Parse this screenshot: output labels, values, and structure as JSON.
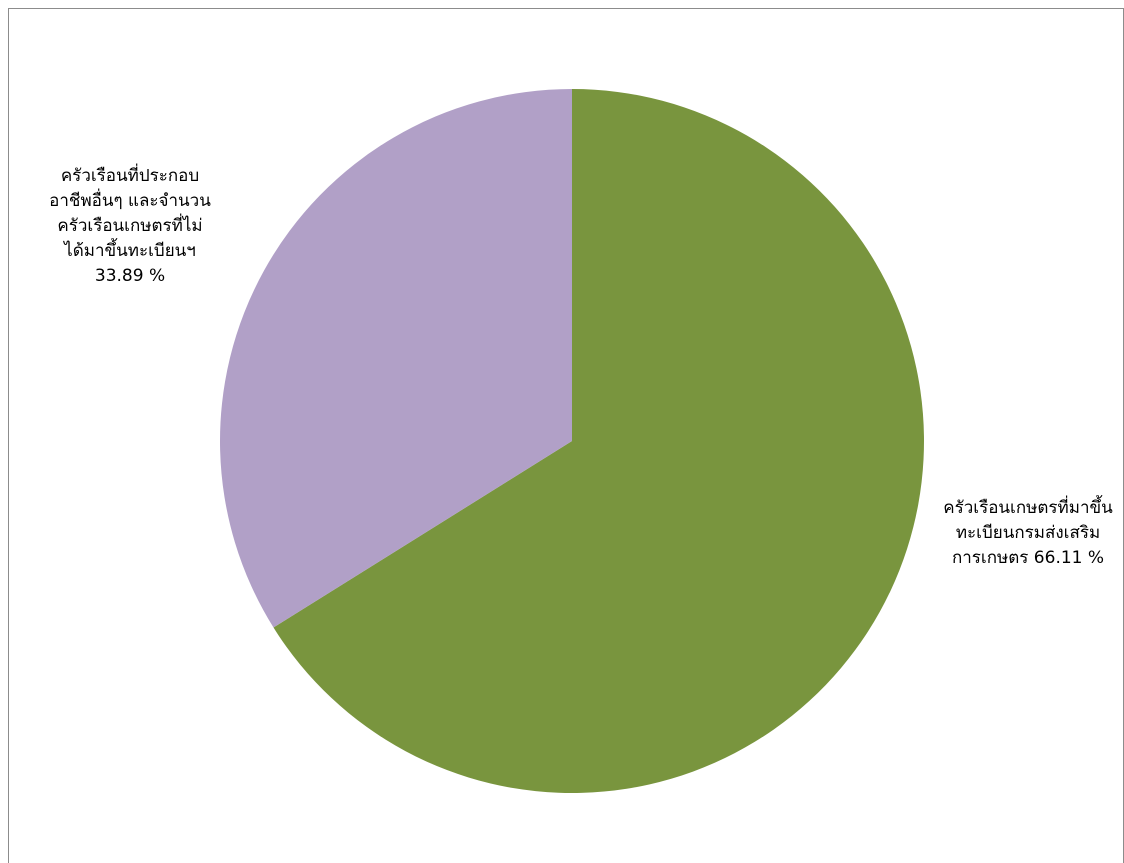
{
  "chart_data": {
    "type": "pie",
    "title": "",
    "slices": [
      {
        "label_lines": [
          "ครัวเรือนเกษตรที่มาขึ้น",
          "ทะเบียนกรมส่งเสริม",
          "การเกษตร 66.11 %"
        ],
        "value": 66.11,
        "color": "#79953e"
      },
      {
        "label_lines": [
          "ครัวเรือนที่ประกอบ",
          "อาชีพอื่นๆ และจำนวน",
          "ครัวเรือนเกษตรที่ไม่",
          "ได้มาขึ้นทะเบียนฯ",
          "33.89 %"
        ],
        "value": 33.89,
        "color": "#b1a0c7"
      }
    ],
    "start_angle_deg": 0,
    "direction": "clockwise",
    "legend": "none",
    "data_labels": "outside"
  }
}
